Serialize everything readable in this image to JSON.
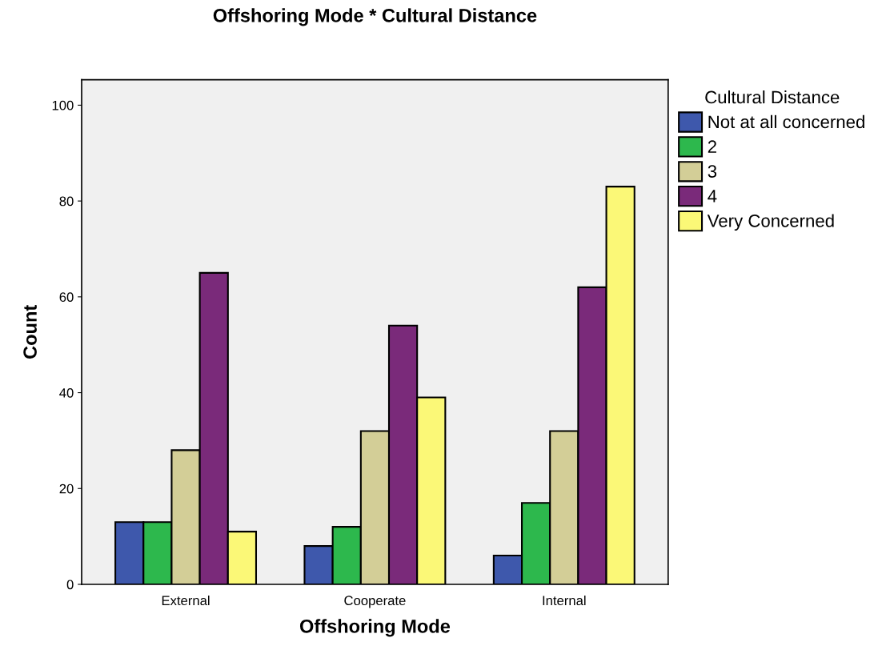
{
  "chart_data": {
    "type": "bar",
    "title": "Offshoring Mode * Cultural Distance",
    "xlabel": "Offshoring Mode",
    "ylabel": "Count",
    "legend_title": "Cultural Distance",
    "categories": [
      "External",
      "Cooperate",
      "Internal"
    ],
    "series": [
      {
        "name": "Not at all concerned",
        "color": "#3e58ac",
        "values": [
          13,
          8,
          6
        ]
      },
      {
        "name": "2",
        "color": "#2db84d",
        "values": [
          13,
          12,
          17
        ]
      },
      {
        "name": "3",
        "color": "#d3ce97",
        "values": [
          28,
          32,
          32
        ]
      },
      {
        "name": "4",
        "color": "#7a2a7a",
        "values": [
          65,
          54,
          62
        ]
      },
      {
        "name": "Very Concerned",
        "color": "#fbf877",
        "values": [
          11,
          39,
          83
        ]
      }
    ],
    "ylim": [
      0,
      105.3
    ],
    "yticks": [
      0,
      20,
      40,
      60,
      80,
      100
    ],
    "grid": false,
    "legend": "top right"
  }
}
